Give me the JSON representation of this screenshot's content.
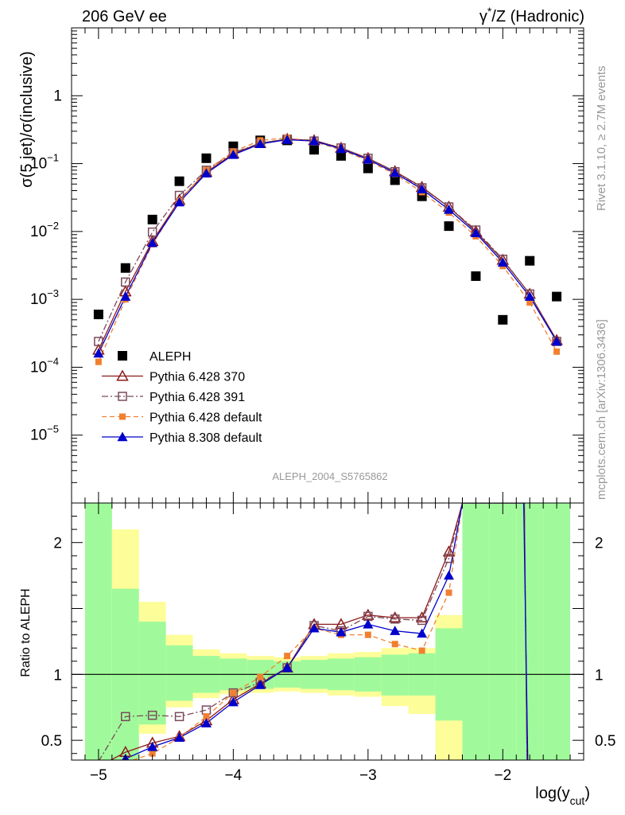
{
  "header": {
    "left": "206 GeV ee",
    "right_gamma": "γ",
    "right_star": "*",
    "right_rest": "/Z (Hadronic)"
  },
  "side_text": {
    "rivet": "Rivet 3.1.10, ≥ 2.7M events",
    "mcplots": "mcplots.cern.ch [arXiv:1306.3436]"
  },
  "watermark": "ALEPH_2004_S5765862",
  "chart_data": [
    {
      "type": "line",
      "panel": "main",
      "ylabel": "σ(5 jet)/σ(inclusive)",
      "yscale": "log",
      "ylim": [
        1e-06,
        10
      ],
      "xlim": [
        -5.2,
        -1.4
      ],
      "yticks": [
        {
          "v": 1e-05,
          "m": "10",
          "e": "−5"
        },
        {
          "v": 0.0001,
          "m": "10",
          "e": "−4"
        },
        {
          "v": 0.001,
          "m": "10",
          "e": "−3"
        },
        {
          "v": 0.01,
          "m": "10",
          "e": "−2"
        },
        {
          "v": 0.1,
          "m": "10",
          "e": "−1"
        },
        {
          "v": 1,
          "m": "1",
          "e": ""
        }
      ],
      "legend_position": "bottom-left",
      "series": [
        {
          "name": "ALEPH",
          "color": "#000000",
          "marker": "square-filled",
          "x": [
            -5.0,
            -4.8,
            -4.6,
            -4.4,
            -4.2,
            -4.0,
            -3.8,
            -3.6,
            -3.4,
            -3.2,
            -3.0,
            -2.8,
            -2.6,
            -2.4,
            -2.2,
            -2.0,
            -1.8,
            -1.6
          ],
          "y": [
            0.0006,
            0.0029,
            0.015,
            0.055,
            0.12,
            0.18,
            0.22,
            0.22,
            0.16,
            0.13,
            0.085,
            0.057,
            0.033,
            0.012,
            0.0022,
            0.0005,
            0.0037,
            0.0011
          ]
        },
        {
          "name": "Pythia 6.428 370",
          "color": "#8b1a1a",
          "marker": "triangle-open",
          "dash": "",
          "x": [
            -5.0,
            -4.8,
            -4.6,
            -4.4,
            -4.2,
            -4.0,
            -3.8,
            -3.6,
            -3.4,
            -3.2,
            -3.0,
            -2.8,
            -2.6,
            -2.4,
            -2.2,
            -2.0,
            -1.8,
            -1.6
          ],
          "y": [
            0.00018,
            0.0013,
            0.0072,
            0.029,
            0.075,
            0.14,
            0.2,
            0.23,
            0.22,
            0.17,
            0.12,
            0.077,
            0.045,
            0.023,
            0.01,
            0.0038,
            0.0012,
            0.00025
          ]
        },
        {
          "name": "Pythia 6.428 391",
          "color": "#7a4a5a",
          "marker": "square-open",
          "dash": "8,3,2,3",
          "x": [
            -5.0,
            -4.8,
            -4.6,
            -4.4,
            -4.2,
            -4.0,
            -3.8,
            -3.6,
            -3.4,
            -3.2,
            -3.0,
            -2.8,
            -2.6,
            -2.4,
            -2.2,
            -2.0,
            -1.8,
            -1.6
          ],
          "y": [
            0.00024,
            0.0018,
            0.0098,
            0.034,
            0.08,
            0.145,
            0.2,
            0.23,
            0.215,
            0.17,
            0.12,
            0.076,
            0.044,
            0.023,
            0.0105,
            0.0039,
            0.0012,
            0.00024
          ]
        },
        {
          "name": "Pythia 6.428 default",
          "color": "#f08030",
          "marker": "square-small",
          "dash": "6,4",
          "x": [
            -5.0,
            -4.8,
            -4.6,
            -4.4,
            -4.2,
            -4.0,
            -3.8,
            -3.6,
            -3.4,
            -3.2,
            -3.0,
            -2.8,
            -2.6,
            -2.4,
            -2.2,
            -2.0,
            -1.8,
            -1.6
          ],
          "y": [
            0.00012,
            0.001,
            0.0065,
            0.028,
            0.08,
            0.15,
            0.22,
            0.24,
            0.21,
            0.16,
            0.11,
            0.07,
            0.038,
            0.019,
            0.0085,
            0.0031,
            0.0009,
            0.00017
          ]
        },
        {
          "name": "Pythia 8.308 default",
          "color": "#0000cc",
          "marker": "triangle-filled",
          "dash": "",
          "x": [
            -5.0,
            -4.8,
            -4.6,
            -4.4,
            -4.2,
            -4.0,
            -3.8,
            -3.6,
            -3.4,
            -3.2,
            -3.0,
            -2.8,
            -2.6,
            -2.4,
            -2.2,
            -2.0,
            -1.8,
            -1.6
          ],
          "y": [
            0.00016,
            0.0011,
            0.0068,
            0.027,
            0.072,
            0.135,
            0.195,
            0.225,
            0.215,
            0.165,
            0.115,
            0.073,
            0.042,
            0.021,
            0.0095,
            0.0035,
            0.0011,
            0.00024
          ]
        }
      ]
    },
    {
      "type": "line",
      "panel": "ratio",
      "ylabel": "Ratio to ALEPH",
      "xlabel_main": "log(y",
      "xlabel_sub": "cut",
      "xlabel_close": ")",
      "ylim": [
        0.35,
        2.3
      ],
      "xlim": [
        -5.2,
        -1.4
      ],
      "xticks": [
        {
          "v": -5,
          "t": "−5"
        },
        {
          "v": -4,
          "t": "−4"
        },
        {
          "v": -3,
          "t": "−3"
        },
        {
          "v": -2,
          "t": "−2"
        }
      ],
      "yticks": [
        {
          "v": 0.5,
          "t": "0.5"
        },
        {
          "v": 1,
          "t": "1"
        },
        {
          "v": 2,
          "t": "2"
        }
      ],
      "bands": [
        {
          "x0": -5.1,
          "x1": -4.9,
          "g_lo": 0.35,
          "g_hi": 2.3,
          "y_lo": 0.35,
          "y_hi": 2.3
        },
        {
          "x0": -4.9,
          "x1": -4.7,
          "g_lo": 0.35,
          "g_hi": 1.65,
          "y_lo": 0.35,
          "y_hi": 2.1
        },
        {
          "x0": -4.7,
          "x1": -4.5,
          "g_lo": 0.62,
          "g_hi": 1.4,
          "y_lo": 0.55,
          "y_hi": 1.55
        },
        {
          "x0": -4.5,
          "x1": -4.3,
          "g_lo": 0.8,
          "g_hi": 1.22,
          "y_lo": 0.75,
          "y_hi": 1.3
        },
        {
          "x0": -4.3,
          "x1": -4.1,
          "g_lo": 0.86,
          "g_hi": 1.14,
          "y_lo": 0.82,
          "y_hi": 1.19
        },
        {
          "x0": -4.1,
          "x1": -3.9,
          "g_lo": 0.88,
          "g_hi": 1.12,
          "y_lo": 0.85,
          "y_hi": 1.16
        },
        {
          "x0": -3.9,
          "x1": -3.7,
          "g_lo": 0.89,
          "g_hi": 1.11,
          "y_lo": 0.86,
          "y_hi": 1.14
        },
        {
          "x0": -3.7,
          "x1": -3.5,
          "g_lo": 0.9,
          "g_hi": 1.1,
          "y_lo": 0.87,
          "y_hi": 1.13
        },
        {
          "x0": -3.5,
          "x1": -3.3,
          "g_lo": 0.89,
          "g_hi": 1.11,
          "y_lo": 0.86,
          "y_hi": 1.14
        },
        {
          "x0": -3.3,
          "x1": -3.1,
          "g_lo": 0.88,
          "g_hi": 1.12,
          "y_lo": 0.84,
          "y_hi": 1.16
        },
        {
          "x0": -3.1,
          "x1": -2.9,
          "g_lo": 0.87,
          "g_hi": 1.13,
          "y_lo": 0.83,
          "y_hi": 1.17
        },
        {
          "x0": -2.9,
          "x1": -2.7,
          "g_lo": 0.84,
          "g_hi": 1.15,
          "y_lo": 0.76,
          "y_hi": 1.2
        },
        {
          "x0": -2.7,
          "x1": -2.5,
          "g_lo": 0.84,
          "g_hi": 1.16,
          "y_lo": 0.7,
          "y_hi": 1.2
        },
        {
          "x0": -2.5,
          "x1": -2.3,
          "g_lo": 0.65,
          "g_hi": 1.35,
          "y_lo": 0.35,
          "y_hi": 1.45
        },
        {
          "x0": -2.3,
          "x1": -2.1,
          "g_lo": 0.35,
          "g_hi": 2.3,
          "y_lo": 0.35,
          "y_hi": 2.3
        },
        {
          "x0": -2.1,
          "x1": -1.9,
          "g_lo": 0.35,
          "g_hi": 2.3,
          "y_lo": 0.35,
          "y_hi": 2.3
        },
        {
          "x0": -1.9,
          "x1": -1.7,
          "g_lo": 0.35,
          "g_hi": 2.3,
          "y_lo": 0.35,
          "y_hi": 2.3
        },
        {
          "x0": -1.7,
          "x1": -1.5,
          "g_lo": 0.35,
          "g_hi": 2.3,
          "y_lo": 0.35,
          "y_hi": 2.3
        }
      ],
      "band_colors": {
        "stat": "#a0fa9b",
        "syst": "#fdfd99"
      },
      "series": [
        {
          "name": "Pythia 6.428 370",
          "color": "#8b1a1a",
          "marker": "triangle-open",
          "dash": "",
          "x": [
            -5.0,
            -4.8,
            -4.6,
            -4.4,
            -4.2,
            -4.0,
            -3.8,
            -3.6,
            -3.4,
            -3.2,
            -3.0,
            -2.8,
            -2.6,
            -2.4,
            -2.3,
            -1.84,
            -1.82
          ],
          "y": [
            0.3,
            0.41,
            0.48,
            0.53,
            0.65,
            0.81,
            0.93,
            1.05,
            1.38,
            1.38,
            1.45,
            1.43,
            1.43,
            1.93,
            2.3,
            2.3,
            0.35
          ]
        },
        {
          "name": "Pythia 6.428 391",
          "color": "#7a4a5a",
          "marker": "square-open",
          "dash": "8,3,2,3",
          "x": [
            -5.0,
            -4.8,
            -4.6,
            -4.4,
            -4.2,
            -4.0,
            -3.8,
            -3.6,
            -3.4,
            -3.2,
            -3.0,
            -2.8,
            -2.6,
            -2.4,
            -2.3,
            -1.84,
            -1.82
          ],
          "y": [
            0.34,
            0.68,
            0.69,
            0.68,
            0.73,
            0.86,
            0.94,
            1.05,
            1.37,
            1.33,
            1.44,
            1.42,
            1.41,
            1.88,
            2.3,
            2.3,
            0.35
          ]
        },
        {
          "name": "Pythia 6.428 default",
          "color": "#f08030",
          "marker": "square-small",
          "dash": "6,4",
          "x": [
            -5.0,
            -4.8,
            -4.6,
            -4.4,
            -4.2,
            -4.0,
            -3.8,
            -3.6,
            -3.4,
            -3.2,
            -3.0,
            -2.8,
            -2.6,
            -2.4,
            -2.3,
            -1.86
          ],
          "y": [
            0.2,
            0.33,
            0.4,
            0.52,
            0.68,
            0.86,
            0.98,
            1.14,
            1.35,
            1.3,
            1.3,
            1.23,
            1.18,
            1.62,
            2.3,
            2.3
          ]
        },
        {
          "name": "Pythia 8.308 default",
          "color": "#0000cc",
          "marker": "triangle-filled",
          "dash": "",
          "x": [
            -5.0,
            -4.8,
            -4.6,
            -4.4,
            -4.2,
            -4.0,
            -3.8,
            -3.6,
            -3.4,
            -3.2,
            -3.0,
            -2.8,
            -2.6,
            -2.4,
            -2.3,
            -1.845,
            -1.815
          ],
          "y": [
            0.27,
            0.36,
            0.45,
            0.52,
            0.63,
            0.79,
            0.92,
            1.05,
            1.35,
            1.32,
            1.38,
            1.33,
            1.31,
            1.75,
            2.3,
            2.3,
            0.35
          ]
        }
      ]
    }
  ]
}
